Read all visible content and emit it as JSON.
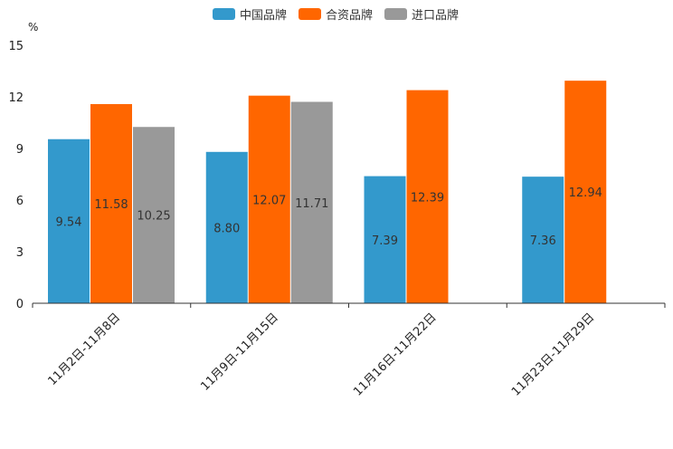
{
  "chart_data": {
    "type": "bar",
    "title": "",
    "xlabel": "",
    "ylabel": "%",
    "ylim": [
      0,
      15
    ],
    "yticks": [
      "0",
      "3",
      "6",
      "9",
      "12",
      "15"
    ],
    "grid": false,
    "legend_position": "top-center",
    "categories": [
      "11月2日-11月8日",
      "11月9日-11月15日",
      "11月16日-11月22日",
      "11月23日-11月29日"
    ],
    "series": [
      {
        "name": "中国品牌",
        "color": "#3399cc",
        "values": [
          9.54,
          8.8,
          7.39,
          7.36
        ],
        "labels": [
          "9.54",
          "8.80",
          "7.39",
          "7.36"
        ]
      },
      {
        "name": "合资品牌",
        "color": "#ff6600",
        "values": [
          11.58,
          12.07,
          12.39,
          12.94
        ],
        "labels": [
          "11.58",
          "12.07",
          "12.39",
          "12.94"
        ]
      },
      {
        "name": "进口品牌",
        "color": "#999999",
        "values": [
          10.25,
          11.71,
          null,
          null
        ],
        "labels": [
          "10.25",
          "11.71",
          null,
          null
        ]
      }
    ]
  }
}
